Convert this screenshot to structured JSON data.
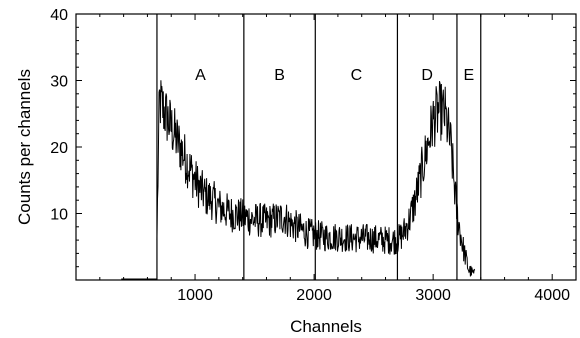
{
  "chart_data": {
    "type": "line",
    "title": "",
    "xlabel": "Channels",
    "ylabel": "Counts per channels",
    "xlim": [
      0,
      4200
    ],
    "ylim": [
      0,
      40
    ],
    "xticks": [
      1000,
      2000,
      3000,
      4000
    ],
    "yticks": [
      10,
      20,
      30,
      40
    ],
    "grid": false,
    "legend": "none",
    "series_color": "#000000",
    "regions": [
      {
        "label": "A",
        "x_start": 680,
        "x_end": 1410
      },
      {
        "label": "B",
        "x_start": 1410,
        "x_end": 2010
      },
      {
        "label": "C",
        "x_start": 2010,
        "x_end": 2700
      },
      {
        "label": "D",
        "x_start": 2700,
        "x_end": 3200
      },
      {
        "label": "E",
        "x_start": 3200,
        "x_end": 3400
      }
    ],
    "boundaries": [
      680,
      1410,
      2010,
      2700,
      3200,
      3400
    ],
    "series": [
      {
        "x": [
          680,
          700,
          750,
          800,
          850,
          900,
          950,
          1000,
          1050,
          1100,
          1150,
          1200,
          1250,
          1300,
          1350,
          1400,
          1450,
          1500,
          1550,
          1600,
          1650,
          1700,
          1750,
          1800,
          1850,
          1900,
          1950,
          2000,
          2100,
          2200,
          2300,
          2400,
          2500,
          2600,
          2700,
          2750,
          2800,
          2850,
          2900,
          2950,
          3000,
          3050,
          3100,
          3150,
          3200,
          3250,
          3300,
          3350
        ],
        "y": [
          6,
          27,
          25,
          23,
          21,
          19,
          17,
          15,
          13.5,
          12.5,
          12,
          11,
          10.5,
          10,
          9.8,
          9.5,
          9.3,
          9,
          9,
          8.8,
          9,
          9.2,
          9.5,
          8.5,
          8,
          7.5,
          7,
          6.8,
          6.5,
          6.5,
          6.3,
          6.3,
          6.2,
          6,
          6,
          7,
          9,
          12,
          16,
          20,
          24,
          25.5,
          25,
          20,
          10,
          5,
          1.5,
          0.8
        ]
      }
    ]
  }
}
